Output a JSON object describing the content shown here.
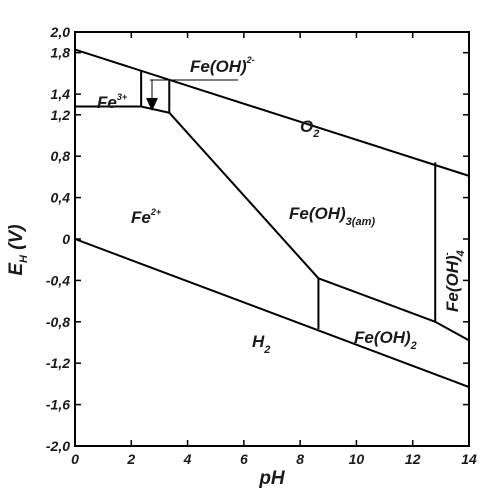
{
  "chart_data": {
    "type": "line",
    "title": "",
    "xlabel": "pH",
    "ylabel": "E",
    "ylabel_subscript": "H",
    "ylabel_unit": " (V)",
    "xlim": [
      0,
      14
    ],
    "ylim": [
      -2.0,
      2.0
    ],
    "x_ticks": [
      {
        "v": 0,
        "label": "0"
      },
      {
        "v": 2,
        "label": "2"
      },
      {
        "v": 4,
        "label": "4"
      },
      {
        "v": 6,
        "label": "6"
      },
      {
        "v": 8,
        "label": "8"
      },
      {
        "v": 10,
        "label": "10"
      },
      {
        "v": 12,
        "label": "12"
      },
      {
        "v": 14,
        "label": "14"
      }
    ],
    "y_ticks": [
      {
        "v": 2.0,
        "label": "2,0"
      },
      {
        "v": 1.8,
        "label": "1,8"
      },
      {
        "v": 1.4,
        "label": "1,4"
      },
      {
        "v": 1.2,
        "label": "1,2"
      },
      {
        "v": 0.8,
        "label": "0,8"
      },
      {
        "v": 0.4,
        "label": "0,4"
      },
      {
        "v": 0.0,
        "label": "0"
      },
      {
        "v": -0.4,
        "label": "-0,4"
      },
      {
        "v": -0.8,
        "label": "-0,8"
      },
      {
        "v": -1.2,
        "label": "-1,2"
      },
      {
        "v": -1.6,
        "label": "-1,6"
      },
      {
        "v": -2.0,
        "label": "-2,0"
      }
    ],
    "grid": false,
    "series": [
      {
        "name": "O2",
        "x": [
          0,
          14
        ],
        "y": [
          1.83,
          0.61
        ]
      },
      {
        "name": "H2",
        "x": [
          0,
          14
        ],
        "y": [
          0.0,
          -1.43
        ]
      },
      {
        "x": [
          0,
          2.35,
          3.35
        ],
        "y": [
          1.28,
          1.28,
          1.22
        ]
      },
      {
        "x": [
          2.35,
          2.35
        ],
        "y": [
          1.28,
          1.62
        ]
      },
      {
        "x": [
          3.35,
          3.35
        ],
        "y": [
          1.22,
          1.53
        ]
      },
      {
        "x": [
          3.35,
          8.65
        ],
        "y": [
          1.22,
          -0.38
        ]
      },
      {
        "x": [
          8.65,
          8.65
        ],
        "y": [
          -0.38,
          -0.87
        ]
      },
      {
        "x": [
          8.65,
          12.8,
          14.0
        ],
        "y": [
          -0.38,
          -0.8,
          -0.98
        ]
      },
      {
        "x": [
          12.8,
          12.8
        ],
        "y": [
          -0.8,
          0.74
        ]
      }
    ],
    "regions": [
      {
        "id": "fe3",
        "main": "Fe",
        "sup": "3+"
      },
      {
        "id": "feoh2",
        "main": "Fe(OH)",
        "sup": "2-"
      },
      {
        "id": "fe2",
        "main": "Fe",
        "sup": "2+"
      },
      {
        "id": "o2",
        "main": "O",
        "sub": "2"
      },
      {
        "id": "feoh3",
        "main": "Fe(OH)",
        "sub": "3(am)"
      },
      {
        "id": "feoh4",
        "main": "Fe(OH)",
        "sup": "-",
        "sub": "4"
      },
      {
        "id": "feoh2b",
        "main": "Fe(OH)",
        "sub": "2"
      },
      {
        "id": "h2",
        "main": "H",
        "sub": "2"
      }
    ]
  }
}
